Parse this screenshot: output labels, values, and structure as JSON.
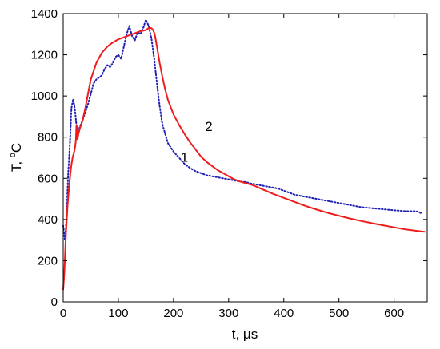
{
  "chart_data": {
    "type": "line",
    "title": "",
    "xlabel": "t, μs",
    "ylabel_main": "T, ",
    "ylabel_sup": "o",
    "ylabel_unit": "C",
    "xlim": [
      0,
      660
    ],
    "ylim": [
      0,
      1400
    ],
    "xticks": [
      0,
      100,
      200,
      300,
      400,
      500,
      600
    ],
    "yticks": [
      0,
      200,
      400,
      600,
      800,
      1000,
      1200,
      1400
    ],
    "grid": false,
    "legend": "none",
    "annotations": [
      {
        "text": "1",
        "x": 220,
        "y": 680
      },
      {
        "text": "2",
        "x": 264,
        "y": 830
      }
    ],
    "series": [
      {
        "label": "1",
        "color": "#1f1fb4",
        "style": "dotted",
        "x": [
          0,
          3,
          6,
          9,
          12,
          15,
          18,
          21,
          24,
          27,
          30,
          35,
          40,
          45,
          50,
          55,
          60,
          65,
          70,
          75,
          80,
          85,
          90,
          95,
          100,
          105,
          110,
          115,
          120,
          125,
          130,
          135,
          140,
          145,
          150,
          155,
          160,
          165,
          170,
          175,
          180,
          190,
          200,
          210,
          220,
          230,
          240,
          250,
          260,
          270,
          280,
          290,
          300,
          310,
          320,
          330,
          340,
          350,
          360,
          370,
          380,
          390,
          400,
          420,
          440,
          460,
          480,
          500,
          520,
          540,
          560,
          580,
          600,
          620,
          640,
          650
        ],
        "y": [
          370,
          300,
          400,
          620,
          760,
          940,
          985,
          940,
          860,
          820,
          850,
          880,
          920,
          960,
          1010,
          1060,
          1080,
          1090,
          1100,
          1130,
          1150,
          1140,
          1160,
          1190,
          1200,
          1180,
          1240,
          1300,
          1340,
          1290,
          1270,
          1310,
          1300,
          1330,
          1370,
          1340,
          1280,
          1180,
          1060,
          950,
          860,
          770,
          730,
          700,
          670,
          650,
          635,
          625,
          615,
          610,
          605,
          600,
          595,
          590,
          585,
          582,
          575,
          570,
          565,
          560,
          555,
          550,
          540,
          520,
          510,
          500,
          490,
          480,
          470,
          460,
          455,
          450,
          445,
          440,
          440,
          430
        ]
      },
      {
        "label": "2",
        "color": "#ee1c1c",
        "style": "solid",
        "x": [
          0,
          2,
          5,
          8,
          11,
          14,
          17,
          20,
          22,
          23,
          24,
          25,
          26,
          28,
          30,
          35,
          40,
          45,
          50,
          60,
          70,
          80,
          90,
          100,
          110,
          120,
          130,
          140,
          150,
          155,
          160,
          163,
          166,
          170,
          175,
          180,
          185,
          190,
          200,
          210,
          220,
          230,
          240,
          250,
          260,
          270,
          280,
          290,
          300,
          310,
          320,
          330,
          340,
          350,
          360,
          380,
          400,
          420,
          440,
          460,
          480,
          500,
          520,
          540,
          560,
          580,
          600,
          620,
          640,
          655
        ],
        "y": [
          60,
          140,
          330,
          470,
          570,
          650,
          700,
          730,
          760,
          790,
          855,
          850,
          790,
          820,
          840,
          880,
          940,
          1010,
          1080,
          1160,
          1210,
          1240,
          1260,
          1275,
          1285,
          1295,
          1305,
          1315,
          1320,
          1330,
          1330,
          1320,
          1300,
          1240,
          1160,
          1090,
          1030,
          980,
          910,
          860,
          815,
          775,
          740,
          705,
          680,
          660,
          640,
          625,
          610,
          595,
          585,
          577,
          570,
          560,
          548,
          525,
          505,
          485,
          465,
          448,
          432,
          418,
          405,
          393,
          382,
          372,
          362,
          352,
          345,
          340
        ]
      }
    ]
  }
}
